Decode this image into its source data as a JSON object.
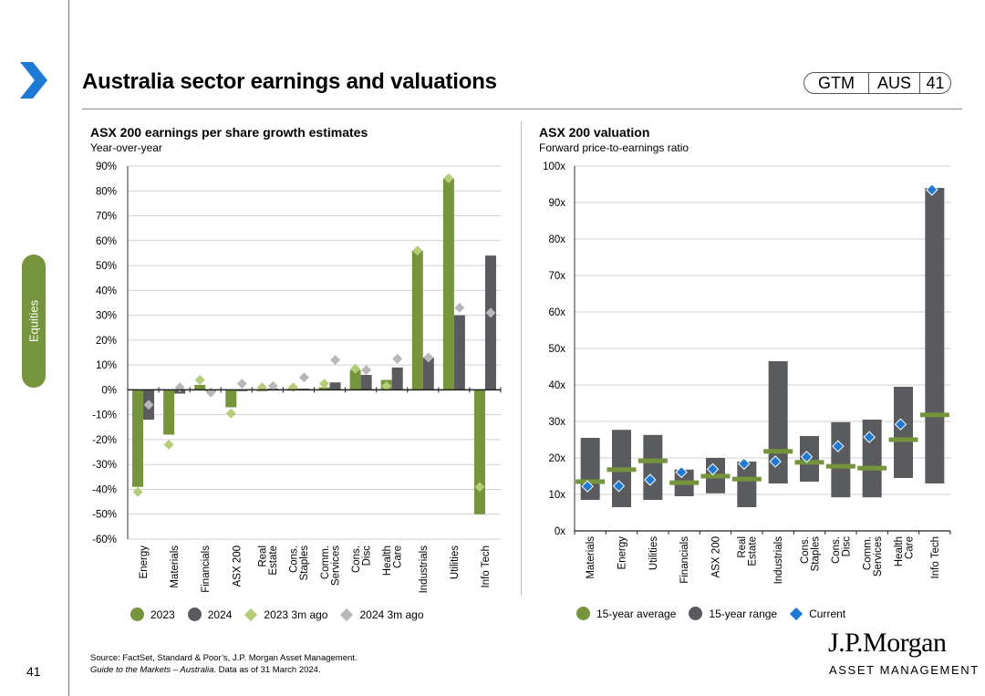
{
  "header": {
    "title": "Australia sector earnings and valuations",
    "badge": [
      "GTM",
      "AUS",
      "41"
    ],
    "side_tab": "Equities"
  },
  "colors": {
    "green": "#76943c",
    "dark": "#595b5f",
    "light_green": "#b5cc78",
    "light_gray": "#b8b8b8",
    "blue": "#1f7ad6"
  },
  "left_chart": {
    "title": "ASX 200 earnings per share growth estimates",
    "subtitle": "Year-over-year",
    "legend": [
      {
        "label": "2023",
        "shape": "circle",
        "color": "#76943c"
      },
      {
        "label": "2024",
        "shape": "circle",
        "color": "#595b5f"
      },
      {
        "label": "2023 3m ago",
        "shape": "diamond",
        "color": "#b5cc78"
      },
      {
        "label": "2024 3m ago",
        "shape": "diamond",
        "color": "#b8b8b8"
      }
    ]
  },
  "right_chart": {
    "title": "ASX 200 valuation",
    "subtitle": "Forward price-to-earnings ratio",
    "legend": [
      {
        "label": "15-year average",
        "shape": "circle",
        "color": "#76943c"
      },
      {
        "label": "15-year range",
        "shape": "circle",
        "color": "#595b5f"
      },
      {
        "label": "Current",
        "shape": "diamond",
        "color": "#1f7ad6"
      }
    ]
  },
  "chart_data": [
    {
      "type": "bar",
      "title": "ASX 200 earnings per share growth estimates",
      "subtitle": "Year-over-year",
      "categories": [
        [
          "Energy"
        ],
        [
          "Materials"
        ],
        [
          "Financials"
        ],
        [
          "ASX 200"
        ],
        [
          "Real",
          "Estate"
        ],
        [
          "Cons.",
          "Staples"
        ],
        [
          "Comm.",
          "Services"
        ],
        [
          "Cons.",
          "Disc"
        ],
        [
          "Health",
          "Care"
        ],
        [
          "Industrials"
        ],
        [
          "Utilities"
        ],
        [
          "Info Tech"
        ]
      ],
      "series": [
        {
          "name": "2023",
          "values": [
            -39,
            -18,
            2,
            -7,
            -0.5,
            0.5,
            1,
            8,
            4,
            56,
            85,
            -50
          ]
        },
        {
          "name": "2024",
          "values": [
            -12,
            -1.5,
            -0.5,
            -0.5,
            0.5,
            0.5,
            3,
            6,
            9,
            13,
            30,
            54
          ]
        },
        {
          "name": "2023 3m ago",
          "values": [
            -41,
            -22,
            4,
            -9.5,
            1,
            1,
            2.5,
            8.5,
            1.5,
            56,
            85,
            -39
          ]
        },
        {
          "name": "2024 3m ago",
          "values": [
            -6,
            1,
            -1,
            2.5,
            1.5,
            5,
            12,
            8,
            12.5,
            13,
            33,
            31
          ]
        }
      ],
      "ylim": [
        -60,
        90
      ],
      "yticks": [
        "90%",
        "80%",
        "70%",
        "60%",
        "50%",
        "40%",
        "30%",
        "20%",
        "10%",
        "0%",
        "-10%",
        "-20%",
        "-30%",
        "-40%",
        "-50%",
        "-60%"
      ],
      "ytick_values": [
        90,
        80,
        70,
        60,
        50,
        40,
        30,
        20,
        10,
        0,
        -10,
        -20,
        -30,
        -40,
        -50,
        -60
      ]
    },
    {
      "type": "range",
      "title": "ASX 200 valuation",
      "subtitle": "Forward price-to-earnings ratio",
      "categories": [
        [
          "Materials"
        ],
        [
          "Energy"
        ],
        [
          "Utilities"
        ],
        [
          "Financials"
        ],
        [
          "ASX 200"
        ],
        [
          "Real",
          "Estate"
        ],
        [
          "Industrials"
        ],
        [
          "Cons.",
          "Staples"
        ],
        [
          "Cons.",
          "Disc"
        ],
        [
          "Comm.",
          "Services"
        ],
        [
          "Health",
          "Care"
        ],
        [
          "Info Tech"
        ]
      ],
      "range_low": [
        8.5,
        6.5,
        8.5,
        9.5,
        10.3,
        6.5,
        13,
        13.5,
        9.2,
        9.2,
        14.5,
        13
      ],
      "range_high": [
        25.5,
        27.7,
        26.3,
        16.8,
        20,
        19,
        46.5,
        26,
        29.8,
        30.5,
        39.5,
        94
      ],
      "average": [
        13.5,
        16.8,
        19.2,
        13.2,
        15,
        14.2,
        21.8,
        18.8,
        17.7,
        17.2,
        25,
        31.8
      ],
      "current": [
        12.2,
        12.3,
        14,
        16.1,
        16.9,
        18.4,
        19,
        20.3,
        23.2,
        25.7,
        29.2,
        93.5
      ],
      "ylim": [
        0,
        100
      ],
      "yticks": [
        "100x",
        "90x",
        "80x",
        "70x",
        "60x",
        "50x",
        "40x",
        "30x",
        "20x",
        "10x",
        "0x"
      ],
      "ytick_values": [
        100,
        90,
        80,
        70,
        60,
        50,
        40,
        30,
        20,
        10,
        0
      ]
    }
  ],
  "footer": {
    "source_line1": "Source: FactSet, Standard & Poor’s, J.P. Morgan Asset Management.",
    "source_italic": "Guide to the Markets – Australia",
    "source_rest": ". Data as of 31 March 2024.",
    "page": "41",
    "logo_top": "J.P.Morgan",
    "logo_bottom": "ASSET MANAGEMENT"
  }
}
